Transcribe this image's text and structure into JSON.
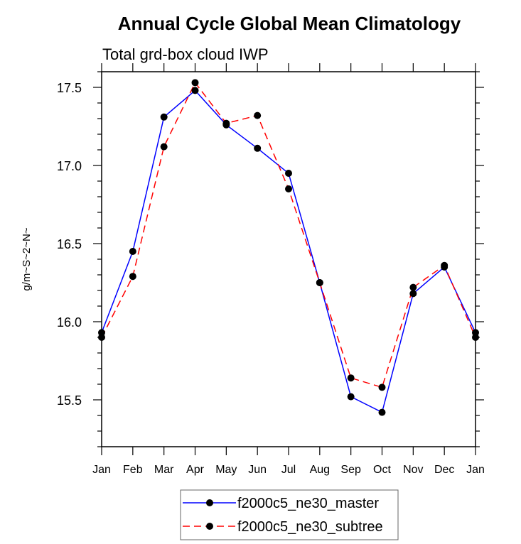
{
  "chart_data": {
    "type": "line",
    "title": "Annual Cycle Global Mean Climatology",
    "subtitle": "Total grd-box cloud IWP",
    "xlabel": "",
    "ylabel": "g/m~S~2~N~",
    "categories": [
      "Jan",
      "Feb",
      "Mar",
      "Apr",
      "May",
      "Jun",
      "Jul",
      "Aug",
      "Sep",
      "Oct",
      "Nov",
      "Dec",
      "Jan"
    ],
    "ylim": [
      15.2,
      17.6
    ],
    "yticks": [
      15.5,
      16.0,
      16.5,
      17.0,
      17.5
    ],
    "ytick_labels": [
      "15.5",
      "16.0",
      "16.5",
      "17.0",
      "17.5"
    ],
    "yminor_step": 0.1,
    "grid": false,
    "legend_position": "bottom-center",
    "series": [
      {
        "name": "f2000c5_ne30_master",
        "color": "#0000ff",
        "dash": "solid",
        "marker": "filled-circle",
        "values": [
          15.93,
          16.45,
          17.31,
          17.48,
          17.26,
          17.11,
          16.95,
          16.25,
          15.52,
          15.42,
          16.18,
          16.35,
          15.93
        ]
      },
      {
        "name": "f2000c5_ne30_subtree",
        "color": "#ff0000",
        "dash": "dashed",
        "marker": "filled-circle",
        "values": [
          15.9,
          16.29,
          17.12,
          17.53,
          17.27,
          17.32,
          16.85,
          16.25,
          15.64,
          15.58,
          16.22,
          16.36,
          15.9
        ]
      }
    ]
  }
}
